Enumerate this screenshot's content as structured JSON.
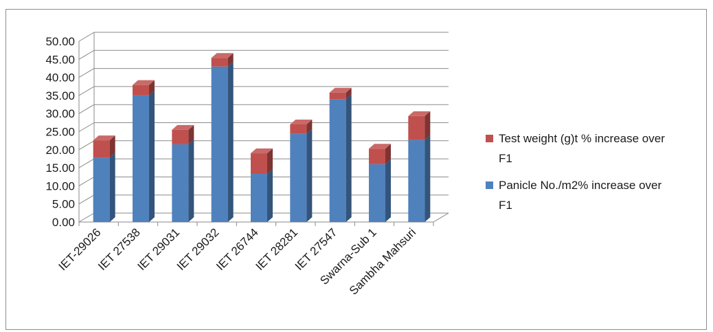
{
  "chart_data": {
    "type": "bar",
    "stacked": true,
    "three_d": true,
    "categories": [
      "IET-29026",
      "IET 27538",
      "IET 29031",
      "IET 29032",
      "IET 26744",
      "IET 28281",
      "IET 27547",
      "Swarna-Sub 1",
      "Sambha Mahsuri"
    ],
    "series": [
      {
        "name": "Panicle No./m2% increase over F1",
        "color": "#4f81bd",
        "values": [
          17.8,
          35.0,
          21.5,
          43.0,
          13.3,
          24.4,
          34.0,
          16.0,
          22.7
        ]
      },
      {
        "name": "Test weight (g)t % increase over F1",
        "color": "#c0504d",
        "values": [
          4.8,
          2.9,
          4.0,
          2.4,
          5.7,
          2.6,
          1.8,
          4.3,
          6.6
        ]
      }
    ],
    "ylim": [
      0,
      50
    ],
    "yticks": [
      "0.00",
      "5.00",
      "10.00",
      "15.00",
      "20.00",
      "25.00",
      "30.00",
      "35.00",
      "40.00",
      "45.00",
      "50.00"
    ],
    "grid": true,
    "legend": {
      "position": "right",
      "entries": [
        {
          "lines": [
            "Test weight (g)t % increase over",
            "F1"
          ],
          "color": "#c0504d"
        },
        {
          "lines": [
            "Panicle No./m2% increase over",
            "F1"
          ],
          "color": "#4f81bd"
        }
      ]
    },
    "title": "",
    "xlabel": "",
    "ylabel": ""
  }
}
